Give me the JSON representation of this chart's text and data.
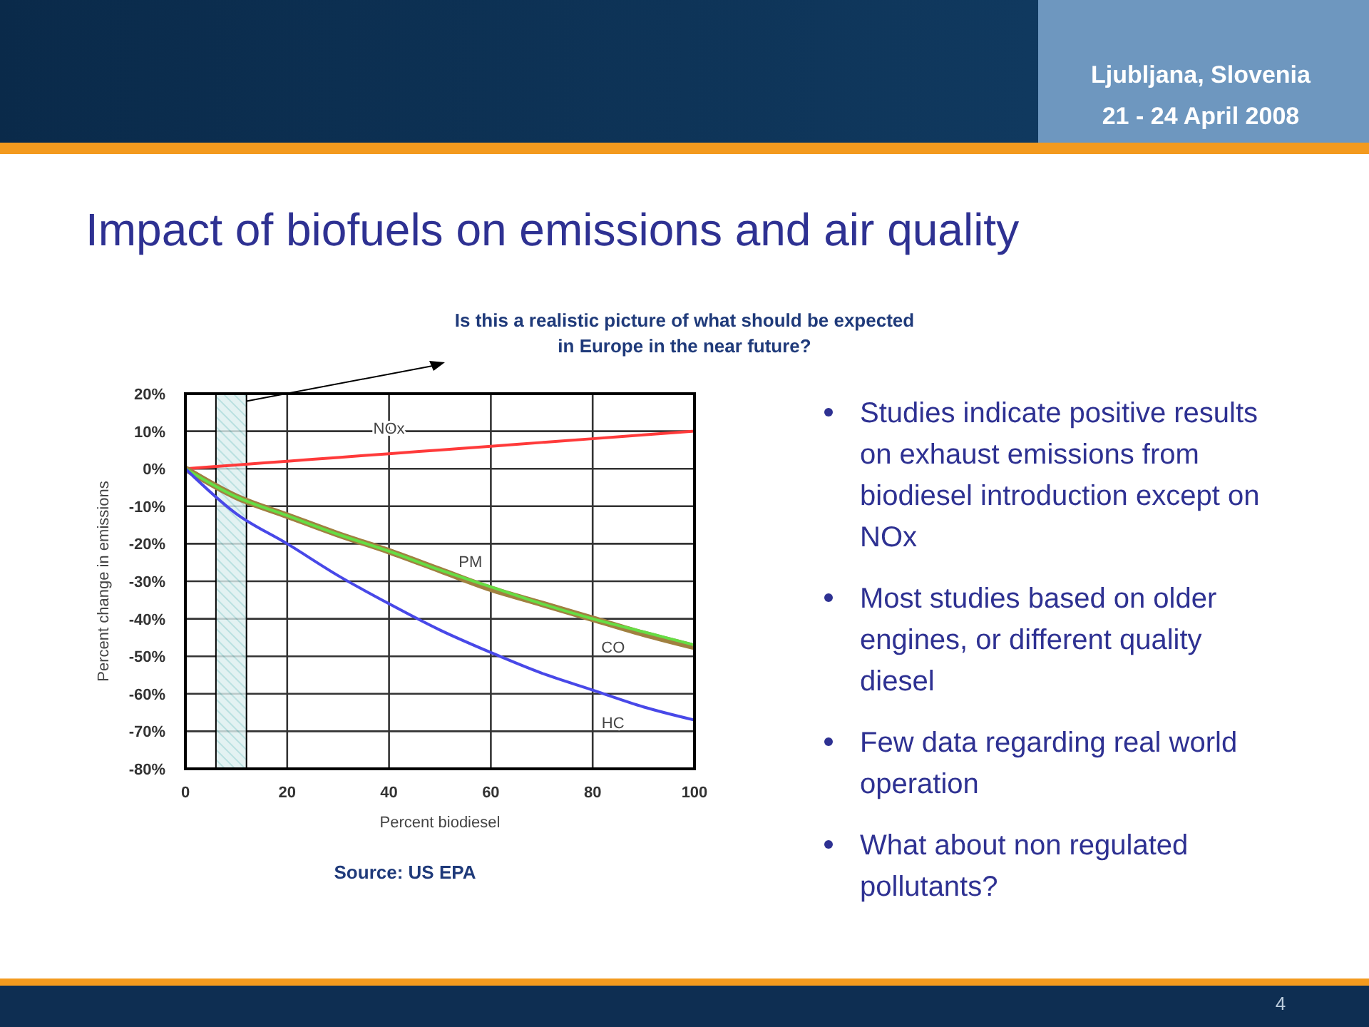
{
  "chart_data": {
    "type": "line",
    "title": "Impact of biofuels on emissions and air quality",
    "xlabel": "Percent biodiesel",
    "ylabel": "Percent change in emissions",
    "x": [
      0,
      10,
      20,
      30,
      40,
      50,
      60,
      70,
      80,
      90,
      100
    ],
    "xlim": [
      0,
      100
    ],
    "xticks": [
      0,
      20,
      40,
      60,
      80,
      100
    ],
    "ylim": [
      -80,
      20
    ],
    "yticks": [
      {
        "value": 20,
        "label": "20%"
      },
      {
        "value": 10,
        "label": "10%"
      },
      {
        "value": 0,
        "label": "0%"
      },
      {
        "value": -10,
        "label": "-10%"
      },
      {
        "value": -20,
        "label": "-20%"
      },
      {
        "value": -30,
        "label": "-30%"
      },
      {
        "value": -40,
        "label": "-40%"
      },
      {
        "value": -50,
        "label": "-50%"
      },
      {
        "value": -60,
        "label": "-60%"
      },
      {
        "value": -70,
        "label": "-70%"
      },
      {
        "value": -80,
        "label": "-80%"
      }
    ],
    "grid": true,
    "marker": "none",
    "line_style": "solid",
    "series": [
      {
        "name": "NOx",
        "color": "#ff3a3a",
        "values": [
          0,
          1,
          2,
          3,
          4,
          5,
          6,
          7,
          8,
          9,
          10
        ]
      },
      {
        "name": "PM",
        "color": "#a08040",
        "values": [
          0,
          -7.5,
          -12.5,
          -17.5,
          -22,
          -27,
          -32,
          -36,
          -40,
          -44,
          -47.5
        ]
      },
      {
        "name": "CO",
        "color": "#66dd44",
        "values": [
          0,
          -7.5,
          -12.5,
          -17.5,
          -22,
          -27,
          -31.5,
          -36,
          -40,
          -43.5,
          -47
        ]
      },
      {
        "name": "HC",
        "color": "#4848e8",
        "values": [
          0,
          -12,
          -20,
          -28.5,
          -36,
          -43,
          -49,
          -54.5,
          -59,
          -63.5,
          -67
        ]
      }
    ],
    "bands": [
      {
        "axis": "x",
        "from": 6,
        "to": 12,
        "color": "#a8d8d8"
      }
    ],
    "annotations": [
      {
        "text": "Is this a realistic picture of what should be expected in Europe in the near future?",
        "x": 12,
        "y": 18
      },
      "Source: US EPA",
      "Studies indicate positive results on exhaust emissions from biodiesel introduction except on NOx",
      "Most studies based on older engines, or different quality diesel",
      "Few data regarding real world operation",
      "What about non regulated pollutants?",
      "Ljubljana, Slovenia",
      "21 - 24 April 2008",
      "4"
    ]
  }
}
